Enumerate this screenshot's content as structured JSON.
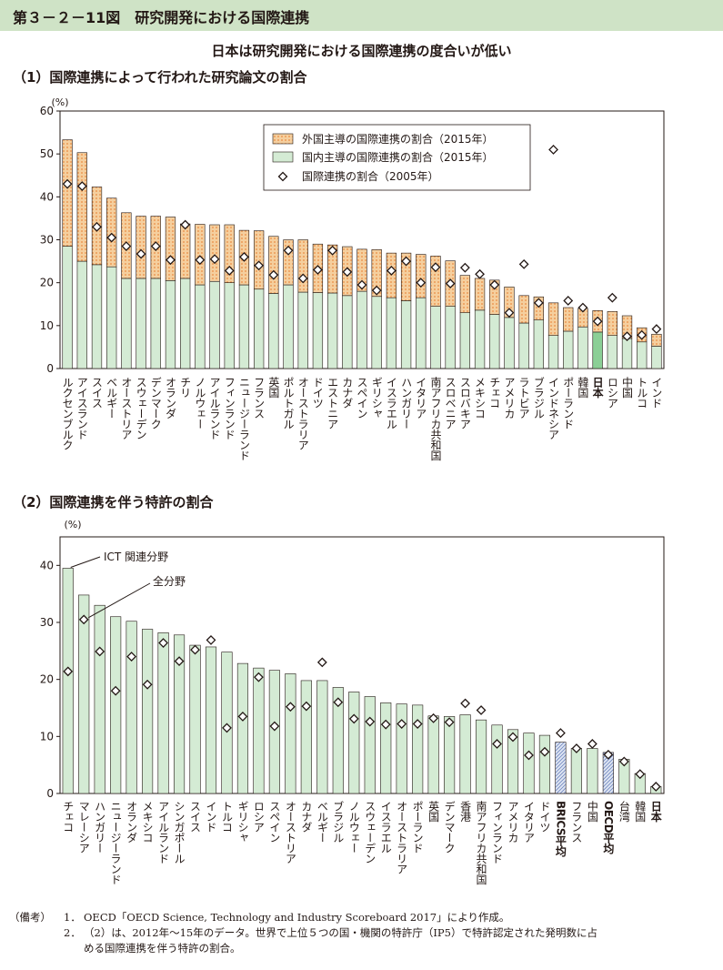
{
  "header": {
    "figure_title": "第３－２－11図　研究開発における国際連携"
  },
  "subtitle": "日本は研究開発における国際連携の度合いが低い",
  "colors": {
    "header_bg": "#cfe3c6",
    "domestic": "#d4ebd4",
    "japan_domestic": "#8bcf96",
    "foreign": "#f5cf9e",
    "foreign_dot": "#e8873c",
    "patent_bar": "#d4ebd4",
    "patent_hatch": "#8aa3cf",
    "frame": "#231815"
  },
  "chart_data": [
    {
      "type": "bar",
      "section_title": "（1）国際連携によって行われた研究論文の割合",
      "ylabel": "(%)",
      "ylim": [
        0,
        60
      ],
      "yticks": [
        0,
        10,
        20,
        30,
        40,
        50,
        60
      ],
      "grid": false,
      "stacked": true,
      "legend_position": "top-right",
      "categories": [
        "ルクセンブルク",
        "アイスランド",
        "スイス",
        "ベルギー",
        "オーストリア",
        "スウェーデン",
        "デンマーク",
        "オランダ",
        "チリ",
        "ノルウェー",
        "アイルランド",
        "フィンランド",
        "ニュージーランド",
        "フランス",
        "英国",
        "ポルトガル",
        "オーストラリア",
        "ドイツ",
        "エストニア",
        "カナダ",
        "スペイン",
        "ギリシャ",
        "イスラエル",
        "ハンガリー",
        "イタリア",
        "南アフリカ共和国",
        "スロベニア",
        "スロバキア",
        "メキシコ",
        "チェコ",
        "アメリカ",
        "ラトビア",
        "ブラジル",
        "インドネシア",
        "ポーランド",
        "韓国",
        "日本",
        "ロシア",
        "中国",
        "トルコ",
        "インド"
      ],
      "highlight_categories": [
        "日本"
      ],
      "series": [
        {
          "name": "国内主導の国際連携の割合（2015年）",
          "kind": "bar",
          "values": [
            28.5,
            25,
            24.2,
            23.7,
            21,
            21,
            21,
            20.5,
            21,
            19.5,
            20.3,
            20,
            19.5,
            18.5,
            17.5,
            19.5,
            17.8,
            17.7,
            17.6,
            17,
            18,
            16.8,
            16.5,
            15.8,
            16.5,
            14.5,
            14.5,
            13,
            13.6,
            12.6,
            11.9,
            10.6,
            11.3,
            7.7,
            8.7,
            9.7,
            8.5,
            7.7,
            7,
            6.2,
            5.2
          ]
        },
        {
          "name": "外国主導の国際連携の割合（2015年）",
          "kind": "bar",
          "values": [
            24.8,
            25.3,
            18.1,
            16,
            15.3,
            14.5,
            14.5,
            14.8,
            12.7,
            14.1,
            13.2,
            13.5,
            12.7,
            13.6,
            13.3,
            10.5,
            12.2,
            11.3,
            11.2,
            11.4,
            9.8,
            10.9,
            10.4,
            11.1,
            10.1,
            11.7,
            10.6,
            8.7,
            7.4,
            8,
            7.1,
            6.4,
            5.4,
            7.6,
            5.5,
            4.3,
            5,
            5.6,
            5.3,
            3.3,
            2.8
          ]
        },
        {
          "name": "国際連携の割合（2005年）",
          "kind": "marker",
          "values": [
            43,
            42.5,
            33,
            30.5,
            28.5,
            26.7,
            28.5,
            25.3,
            33.5,
            25.3,
            25.5,
            22.8,
            26,
            24,
            21.8,
            27.5,
            21,
            23,
            27.5,
            22.5,
            19.5,
            18.2,
            22.8,
            25,
            20,
            23.6,
            19.8,
            23.5,
            22,
            19.5,
            13,
            24.3,
            15.3,
            51,
            15.8,
            14.2,
            11,
            16.5,
            7.5,
            7.8,
            9.2
          ]
        }
      ]
    },
    {
      "type": "bar",
      "section_title": "（2）国際連携を伴う特許の割合",
      "ylabel": "(%)",
      "ylim": [
        0,
        45
      ],
      "yticks": [
        0,
        10,
        20,
        30,
        40
      ],
      "grid": false,
      "legend_position": "none",
      "annotations": [
        "ICT 関連分野",
        "全分野"
      ],
      "categories": [
        "チェコ",
        "マレーシア",
        "ハンガリー",
        "ニュージーランド",
        "オランダ",
        "メキシコ",
        "アイルランド",
        "シンガポール",
        "スイス",
        "インド",
        "トルコ",
        "ギリシャ",
        "ロシア",
        "スペイン",
        "オーストリア",
        "カナダ",
        "ベルギー",
        "ブラジル",
        "ノルウェー",
        "スウェーデン",
        "イスラエル",
        "オーストラリア",
        "ポーランド",
        "英国",
        "デンマーク",
        "香港",
        "南アフリカ共和国",
        "フィンランド",
        "アメリカ",
        "イタリア",
        "ドイツ",
        "BRICS平均",
        "フランス",
        "中国",
        "OECD平均",
        "台湾",
        "韓国",
        "日本"
      ],
      "bold_categories": [
        "BRICS平均",
        "OECD平均",
        "日本"
      ],
      "hatched_categories": [
        "BRICS平均",
        "OECD平均"
      ],
      "series": [
        {
          "name": "ICT 関連分野",
          "kind": "bar",
          "values": [
            39.5,
            34.8,
            33,
            31,
            30.2,
            28.8,
            28.2,
            27.8,
            26,
            25.7,
            24.8,
            22.8,
            22,
            21.6,
            21,
            19.8,
            19.8,
            18.6,
            17.8,
            17,
            15.9,
            15.7,
            15.5,
            13.6,
            13.5,
            13.8,
            12.9,
            12,
            11.2,
            10.6,
            10.2,
            9,
            7.9,
            7.9,
            7.2,
            6,
            3.5,
            1.2
          ]
        },
        {
          "name": "全分野",
          "kind": "marker",
          "values": [
            21.4,
            30.5,
            24.9,
            18,
            24,
            19.1,
            26.4,
            23.2,
            25.2,
            26.9,
            11.5,
            13.5,
            20.4,
            11.8,
            15.2,
            15.3,
            23,
            16,
            13.1,
            12.6,
            12.1,
            12.2,
            12.2,
            13.2,
            12.5,
            15.8,
            14.6,
            8.7,
            9.9,
            6.7,
            7.3,
            10.6,
            7.9,
            8.7,
            6.8,
            5.6,
            3.4,
            1.2
          ]
        }
      ]
    }
  ],
  "notes": {
    "label": "（備考）",
    "items": [
      {
        "num": "1．",
        "text": "OECD「OECD Science, Technology and Industry Scoreboard 2017」により作成。"
      },
      {
        "num": "2．",
        "text": "（2）は、2012年～15年のデータ。世界で上位５つの国・機関の特許庁（IP5）で特許認定された発明数に占",
        "cont": "める国際連携を伴う特許の割合。"
      }
    ]
  }
}
